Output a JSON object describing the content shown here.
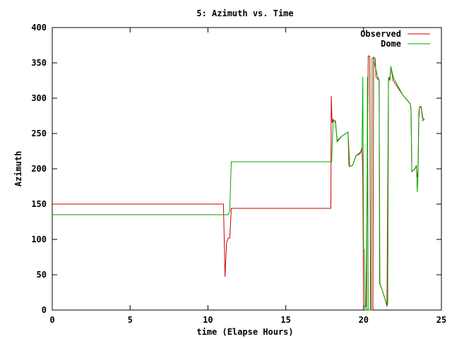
{
  "chart_data": {
    "type": "line",
    "title": "5: Azimuth vs. Time",
    "xlabel": "time (Elapse Hours)",
    "ylabel": "Azimuth",
    "xlim": [
      0,
      25
    ],
    "ylim": [
      0,
      400
    ],
    "xticks": [
      0,
      5,
      10,
      15,
      20,
      25
    ],
    "yticks": [
      0,
      50,
      100,
      150,
      200,
      250,
      300,
      350,
      400
    ],
    "grid": false,
    "legend_position": "top-right",
    "series": [
      {
        "name": "Observed",
        "color": "#cc0000",
        "points": [
          [
            0,
            150
          ],
          [
            11.0,
            150
          ],
          [
            11.05,
            100
          ],
          [
            11.1,
            47
          ],
          [
            11.2,
            95
          ],
          [
            11.3,
            102
          ],
          [
            11.4,
            102
          ],
          [
            11.5,
            144
          ],
          [
            17.9,
            144
          ],
          [
            17.92,
            303
          ],
          [
            17.98,
            265
          ],
          [
            18.05,
            270
          ],
          [
            18.2,
            265
          ],
          [
            18.3,
            240
          ],
          [
            18.6,
            246
          ],
          [
            19.0,
            252
          ],
          [
            19.1,
            203
          ],
          [
            19.3,
            205
          ],
          [
            19.5,
            218
          ],
          [
            19.8,
            222
          ],
          [
            19.9,
            230
          ],
          [
            19.95,
            190
          ],
          [
            20.0,
            5
          ],
          [
            20.05,
            5
          ],
          [
            20.15,
            5
          ],
          [
            20.2,
            90
          ],
          [
            20.3,
            360
          ],
          [
            20.4,
            359
          ],
          [
            20.45,
            0
          ],
          [
            20.5,
            0
          ],
          [
            20.6,
            0
          ],
          [
            20.65,
            358
          ],
          [
            20.75,
            356
          ],
          [
            20.8,
            330
          ],
          [
            21.0,
            325
          ],
          [
            21.03,
            38
          ],
          [
            21.2,
            28
          ],
          [
            21.4,
            14
          ],
          [
            21.5,
            5
          ],
          [
            21.6,
            325
          ],
          [
            21.7,
            330
          ],
          [
            21.75,
            345
          ],
          [
            21.9,
            325
          ],
          [
            22.5,
            305
          ],
          [
            23.0,
            292
          ],
          [
            23.05,
            283
          ],
          [
            23.1,
            196
          ],
          [
            23.3,
            200
          ],
          [
            23.4,
            204
          ],
          [
            23.45,
            188
          ],
          [
            23.5,
            195
          ],
          [
            23.55,
            270
          ],
          [
            23.6,
            288
          ],
          [
            23.7,
            288
          ],
          [
            23.8,
            272
          ],
          [
            23.9,
            270
          ]
        ]
      },
      {
        "name": "Dome",
        "color": "#00aa00",
        "points": [
          [
            0,
            135
          ],
          [
            11.3,
            135
          ],
          [
            11.4,
            140
          ],
          [
            11.5,
            210
          ],
          [
            17.95,
            210
          ],
          [
            17.98,
            230
          ],
          [
            18.05,
            268
          ],
          [
            18.2,
            268
          ],
          [
            18.3,
            238
          ],
          [
            18.6,
            246
          ],
          [
            19.0,
            252
          ],
          [
            19.05,
            205
          ],
          [
            19.1,
            203
          ],
          [
            19.3,
            205
          ],
          [
            19.5,
            218
          ],
          [
            19.8,
            224
          ],
          [
            19.9,
            230
          ],
          [
            19.95,
            330
          ],
          [
            20.0,
            85
          ],
          [
            20.05,
            85
          ],
          [
            20.1,
            0
          ],
          [
            20.2,
            0
          ],
          [
            20.25,
            330
          ],
          [
            20.3,
            0
          ],
          [
            20.5,
            0
          ],
          [
            20.55,
            357
          ],
          [
            20.65,
            356
          ],
          [
            20.7,
            348
          ],
          [
            20.8,
            340
          ],
          [
            20.85,
            335
          ],
          [
            21.0,
            325
          ],
          [
            21.05,
            38
          ],
          [
            21.2,
            28
          ],
          [
            21.4,
            14
          ],
          [
            21.5,
            5
          ],
          [
            21.55,
            10
          ],
          [
            21.6,
            330
          ],
          [
            21.7,
            325
          ],
          [
            21.75,
            345
          ],
          [
            21.9,
            330
          ],
          [
            22.5,
            305
          ],
          [
            23.0,
            292
          ],
          [
            23.05,
            283
          ],
          [
            23.1,
            196
          ],
          [
            23.3,
            200
          ],
          [
            23.4,
            205
          ],
          [
            23.45,
            167
          ],
          [
            23.5,
            190
          ],
          [
            23.55,
            280
          ],
          [
            23.6,
            287
          ],
          [
            23.7,
            287
          ],
          [
            23.8,
            268
          ],
          [
            23.9,
            270
          ]
        ]
      }
    ]
  }
}
